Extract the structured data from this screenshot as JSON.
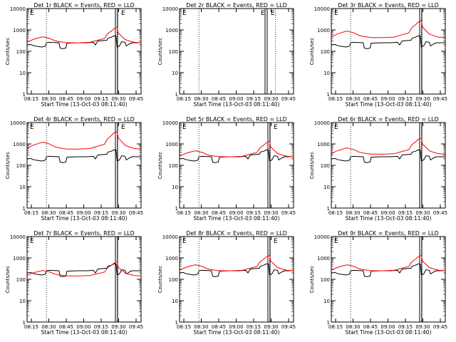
{
  "figure": {
    "title_prefix": "Det",
    "title_suffix": "BLACK = Events, RED = LLD",
    "xlabel": "Start Time (13-Oct-03 08:11:40)",
    "ylabel": "Counts/sec",
    "marker_label": "E",
    "colors": {
      "events": "#000000",
      "lld": "#ff0000",
      "axes": "#000000"
    }
  },
  "chart_data": [
    {
      "type": "line",
      "title": "Det 1r BLACK = Events, RED = LLD",
      "det": "1r",
      "xlabel": "Start Time (13-Oct-03 08:11:40)",
      "ylabel": "Counts/sec",
      "x_ticks": [
        "08:15",
        "08:30",
        "08:45",
        "09:00",
        "09:15",
        "09:30",
        "09:45"
      ],
      "y_ticks": [
        "1",
        "10",
        "100",
        "1000",
        "10000"
      ],
      "ylim": [
        1,
        10000
      ],
      "yscale": "log",
      "has_data": true,
      "events_scale": 1.0,
      "lld_scale": 1.0,
      "markers": [
        "E",
        "E"
      ],
      "series": [
        {
          "name": "Events",
          "color": "#000000"
        },
        {
          "name": "LLD",
          "color": "#ff0000"
        }
      ]
    },
    {
      "type": "line",
      "title": "Det 2r BLACK = Events, RED = LLD",
      "det": "2r",
      "xlabel": "Start Time (13-Oct-03 08:11:40)",
      "ylabel": "Counts/sec",
      "x_ticks": [
        "08:15",
        "08:30",
        "08:45",
        "09:00",
        "09:15",
        "09:30",
        "09:45"
      ],
      "y_ticks": [
        "1",
        "10",
        "100",
        "1000",
        "10000"
      ],
      "ylim": [
        1,
        10000
      ],
      "yscale": "log",
      "has_data": false,
      "events_scale": 1.0,
      "lld_scale": 1.0,
      "markers": [
        "E",
        "E",
        "E"
      ],
      "series": [
        {
          "name": "Events",
          "color": "#000000"
        },
        {
          "name": "LLD",
          "color": "#ff0000"
        }
      ]
    },
    {
      "type": "line",
      "title": "Det 3r BLACK = Events, RED = LLD",
      "det": "3r",
      "xlabel": "Start Time (13-Oct-03 08:11:40)",
      "ylabel": "Counts/sec",
      "x_ticks": [
        "08:15",
        "08:30",
        "08:45",
        "09:00",
        "09:15",
        "09:30",
        "09:45"
      ],
      "y_ticks": [
        "1",
        "10",
        "100",
        "1000",
        "10000"
      ],
      "ylim": [
        1,
        10000
      ],
      "yscale": "log",
      "has_data": true,
      "events_scale": 1.0,
      "lld_scale": 1.1,
      "markers": [
        "E"
      ],
      "series": [
        {
          "name": "Events",
          "color": "#000000"
        },
        {
          "name": "LLD",
          "color": "#ff0000"
        }
      ]
    },
    {
      "type": "line",
      "title": "Det 4r BLACK = Events, RED = LLD",
      "det": "4r",
      "xlabel": "Start Time (13-Oct-03 08:11:40)",
      "ylabel": "Counts/sec",
      "x_ticks": [
        "08:15",
        "08:30",
        "08:45",
        "09:00",
        "09:15",
        "09:30",
        "09:45"
      ],
      "y_ticks": [
        "1",
        "10",
        "100",
        "1000",
        "10000"
      ],
      "ylim": [
        1,
        10000
      ],
      "yscale": "log",
      "has_data": true,
      "events_scale": 1.0,
      "lld_scale": 1.15,
      "markers": [
        "E",
        "E"
      ],
      "series": [
        {
          "name": "Events",
          "color": "#000000"
        },
        {
          "name": "LLD",
          "color": "#ff0000"
        }
      ]
    },
    {
      "type": "line",
      "title": "Det 5r BLACK = Events, RED = LLD",
      "det": "5r",
      "xlabel": "Start Time (13-Oct-03 08:11:40)",
      "ylabel": "Counts/sec",
      "x_ticks": [
        "08:15",
        "08:30",
        "08:45",
        "09:00",
        "09:15",
        "09:30",
        "09:45"
      ],
      "y_ticks": [
        "1",
        "10",
        "100",
        "1000",
        "10000"
      ],
      "ylim": [
        1,
        10000
      ],
      "yscale": "log",
      "has_data": true,
      "events_scale": 1.0,
      "lld_scale": 1.0,
      "markers": [
        "E",
        "E"
      ],
      "series": [
        {
          "name": "Events",
          "color": "#000000"
        },
        {
          "name": "LLD",
          "color": "#ff0000"
        }
      ]
    },
    {
      "type": "line",
      "title": "Det 6r BLACK = Events, RED = LLD",
      "det": "6r",
      "xlabel": "Start Time (13-Oct-03 08:11:40)",
      "ylabel": "Counts/sec",
      "x_ticks": [
        "08:15",
        "08:30",
        "08:45",
        "09:00",
        "09:15",
        "09:30",
        "09:45"
      ],
      "y_ticks": [
        "1",
        "10",
        "100",
        "1000",
        "10000"
      ],
      "ylim": [
        1,
        10000
      ],
      "yscale": "log",
      "has_data": true,
      "events_scale": 1.0,
      "lld_scale": 1.05,
      "markers": [
        "E"
      ],
      "series": [
        {
          "name": "Events",
          "color": "#000000"
        },
        {
          "name": "LLD",
          "color": "#ff0000"
        }
      ]
    },
    {
      "type": "line",
      "title": "Det 7r BLACK = Events, RED = LLD",
      "det": "7r",
      "xlabel": "Start Time (13-Oct-03 08:11:40)",
      "ylabel": "Counts/sec",
      "x_ticks": [
        "08:15",
        "08:30",
        "08:45",
        "09:00",
        "09:15",
        "09:30",
        "09:45"
      ],
      "y_ticks": [
        "1",
        "10",
        "100",
        "1000",
        "10000"
      ],
      "ylim": [
        1,
        10000
      ],
      "yscale": "log",
      "has_data": true,
      "events_scale": 1.0,
      "lld_scale": 0.9,
      "markers": [
        "E"
      ],
      "series": [
        {
          "name": "Events",
          "color": "#000000"
        },
        {
          "name": "LLD",
          "color": "#ff0000"
        }
      ]
    },
    {
      "type": "line",
      "title": "Det 8r BLACK = Events, RED = LLD",
      "det": "8r",
      "xlabel": "Start Time (13-Oct-03 08:11:40)",
      "ylabel": "Counts/sec",
      "x_ticks": [
        "08:15",
        "08:30",
        "08:45",
        "09:00",
        "09:15",
        "09:30",
        "09:45"
      ],
      "y_ticks": [
        "1",
        "10",
        "100",
        "1000",
        "10000"
      ],
      "ylim": [
        1,
        10000
      ],
      "yscale": "log",
      "has_data": true,
      "events_scale": 1.0,
      "lld_scale": 1.0,
      "markers": [
        "E",
        "E"
      ],
      "series": [
        {
          "name": "Events",
          "color": "#000000"
        },
        {
          "name": "LLD",
          "color": "#ff0000"
        }
      ]
    },
    {
      "type": "line",
      "title": "Det 9r BLACK = Events, RED = LLD",
      "det": "9r",
      "xlabel": "Start Time (13-Oct-03 08:11:40)",
      "ylabel": "Counts/sec",
      "x_ticks": [
        "08:15",
        "08:30",
        "08:45",
        "09:00",
        "09:15",
        "09:30",
        "09:45"
      ],
      "y_ticks": [
        "1",
        "10",
        "100",
        "1000",
        "10000"
      ],
      "ylim": [
        1,
        10000
      ],
      "yscale": "log",
      "has_data": true,
      "events_scale": 1.0,
      "lld_scale": 1.0,
      "markers": [
        "E"
      ],
      "series": [
        {
          "name": "Events",
          "color": "#000000"
        },
        {
          "name": "LLD",
          "color": "#ff0000"
        }
      ]
    }
  ]
}
